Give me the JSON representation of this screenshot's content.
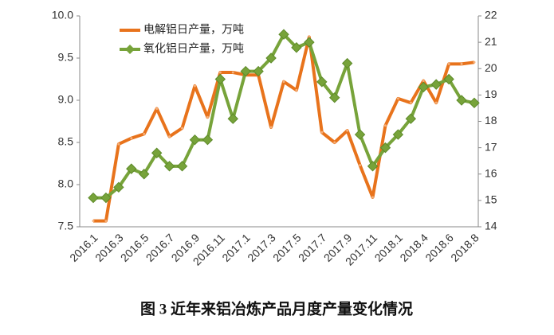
{
  "chart_data": {
    "type": "line",
    "title": "图 3 近年来铝冶炼产品月度产量变化情况",
    "categories": [
      "2016.1",
      null,
      "2016.3",
      null,
      "2016.5",
      null,
      "2016.7",
      null,
      "2016.9",
      null,
      "2016.11",
      null,
      "2017.1",
      null,
      "2017.3",
      null,
      "2017.5",
      null,
      "2017.7",
      null,
      "2017.9",
      null,
      "2017.11",
      null,
      "2018.1",
      null,
      "2018.4",
      null,
      "2018.6",
      null,
      "2018.8"
    ],
    "series": [
      {
        "name": "电解铝日产量，万吨",
        "color": "#e8731c",
        "axis": "y",
        "values": [
          7.57,
          7.57,
          8.48,
          8.55,
          8.6,
          8.9,
          8.57,
          8.67,
          9.17,
          8.8,
          9.33,
          9.33,
          9.3,
          9.3,
          8.68,
          9.22,
          9.12,
          9.75,
          8.62,
          8.5,
          8.64,
          8.23,
          7.85,
          8.7,
          9.02,
          8.97,
          9.23,
          8.97,
          9.43,
          9.43,
          9.45
        ]
      },
      {
        "name": "氧化铝日产量，万吨",
        "color": "#77a33a",
        "axis": "y2",
        "values": [
          15.1,
          15.1,
          15.5,
          16.2,
          16.0,
          16.8,
          16.3,
          16.3,
          17.3,
          17.3,
          19.6,
          18.1,
          19.9,
          19.9,
          20.4,
          21.3,
          20.8,
          21.0,
          19.5,
          18.9,
          20.2,
          17.5,
          16.3,
          17.0,
          17.5,
          18.1,
          19.3,
          19.4,
          19.6,
          18.8,
          18.7
        ]
      }
    ],
    "ylim": [
      7.5,
      10.0
    ],
    "yticks": [
      7.5,
      {
        "value": 8.0,
        "label": "8.0"
      },
      8.5,
      {
        "value": 9.0,
        "label": "9.0"
      },
      9.5,
      {
        "value": 10.0,
        "label": "10.0"
      }
    ],
    "y2lim": [
      14,
      22
    ],
    "y2ticks": [
      14,
      15,
      16,
      17,
      18,
      19,
      20,
      21,
      22
    ],
    "legend": "upper left"
  }
}
